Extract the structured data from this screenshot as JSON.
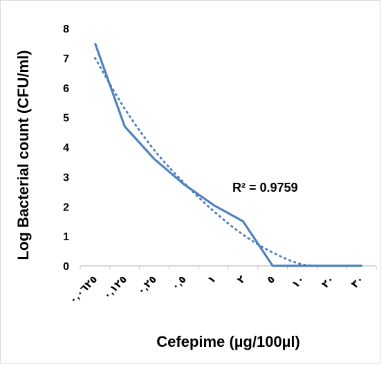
{
  "chart_data": {
    "type": "line",
    "xlabel": "Cefepime (µg/100µl)",
    "ylabel": "Log Bacterial count (CFU/ml)",
    "ylim": [
      0,
      8
    ],
    "yticks": [
      "0",
      "1",
      "2",
      "3",
      "4",
      "5",
      "6",
      "7",
      "8"
    ],
    "categories": [
      "٠,٠٦٢٥",
      "٠,١٢٥",
      "٠,٢٥",
      "٠,٥",
      "١",
      "٢",
      "٥",
      "١٠",
      "٢٠",
      "٣٠"
    ],
    "series": [
      {
        "values": [
          7.5,
          4.7,
          3.6,
          2.75,
          2.05,
          1.5,
          0,
          0,
          0,
          0
        ],
        "color": "#4f81bd",
        "style": "solid"
      }
    ],
    "trendline": {
      "type": "polynomial",
      "color": "#4f81bd",
      "style": "dotted",
      "values": [
        7.0,
        5.3,
        3.9,
        2.8,
        1.85,
        1.05,
        0.45,
        0.05,
        0,
        0
      ],
      "r_squared_label": "R² = 0.9759"
    },
    "grid": false,
    "legend": "none"
  }
}
